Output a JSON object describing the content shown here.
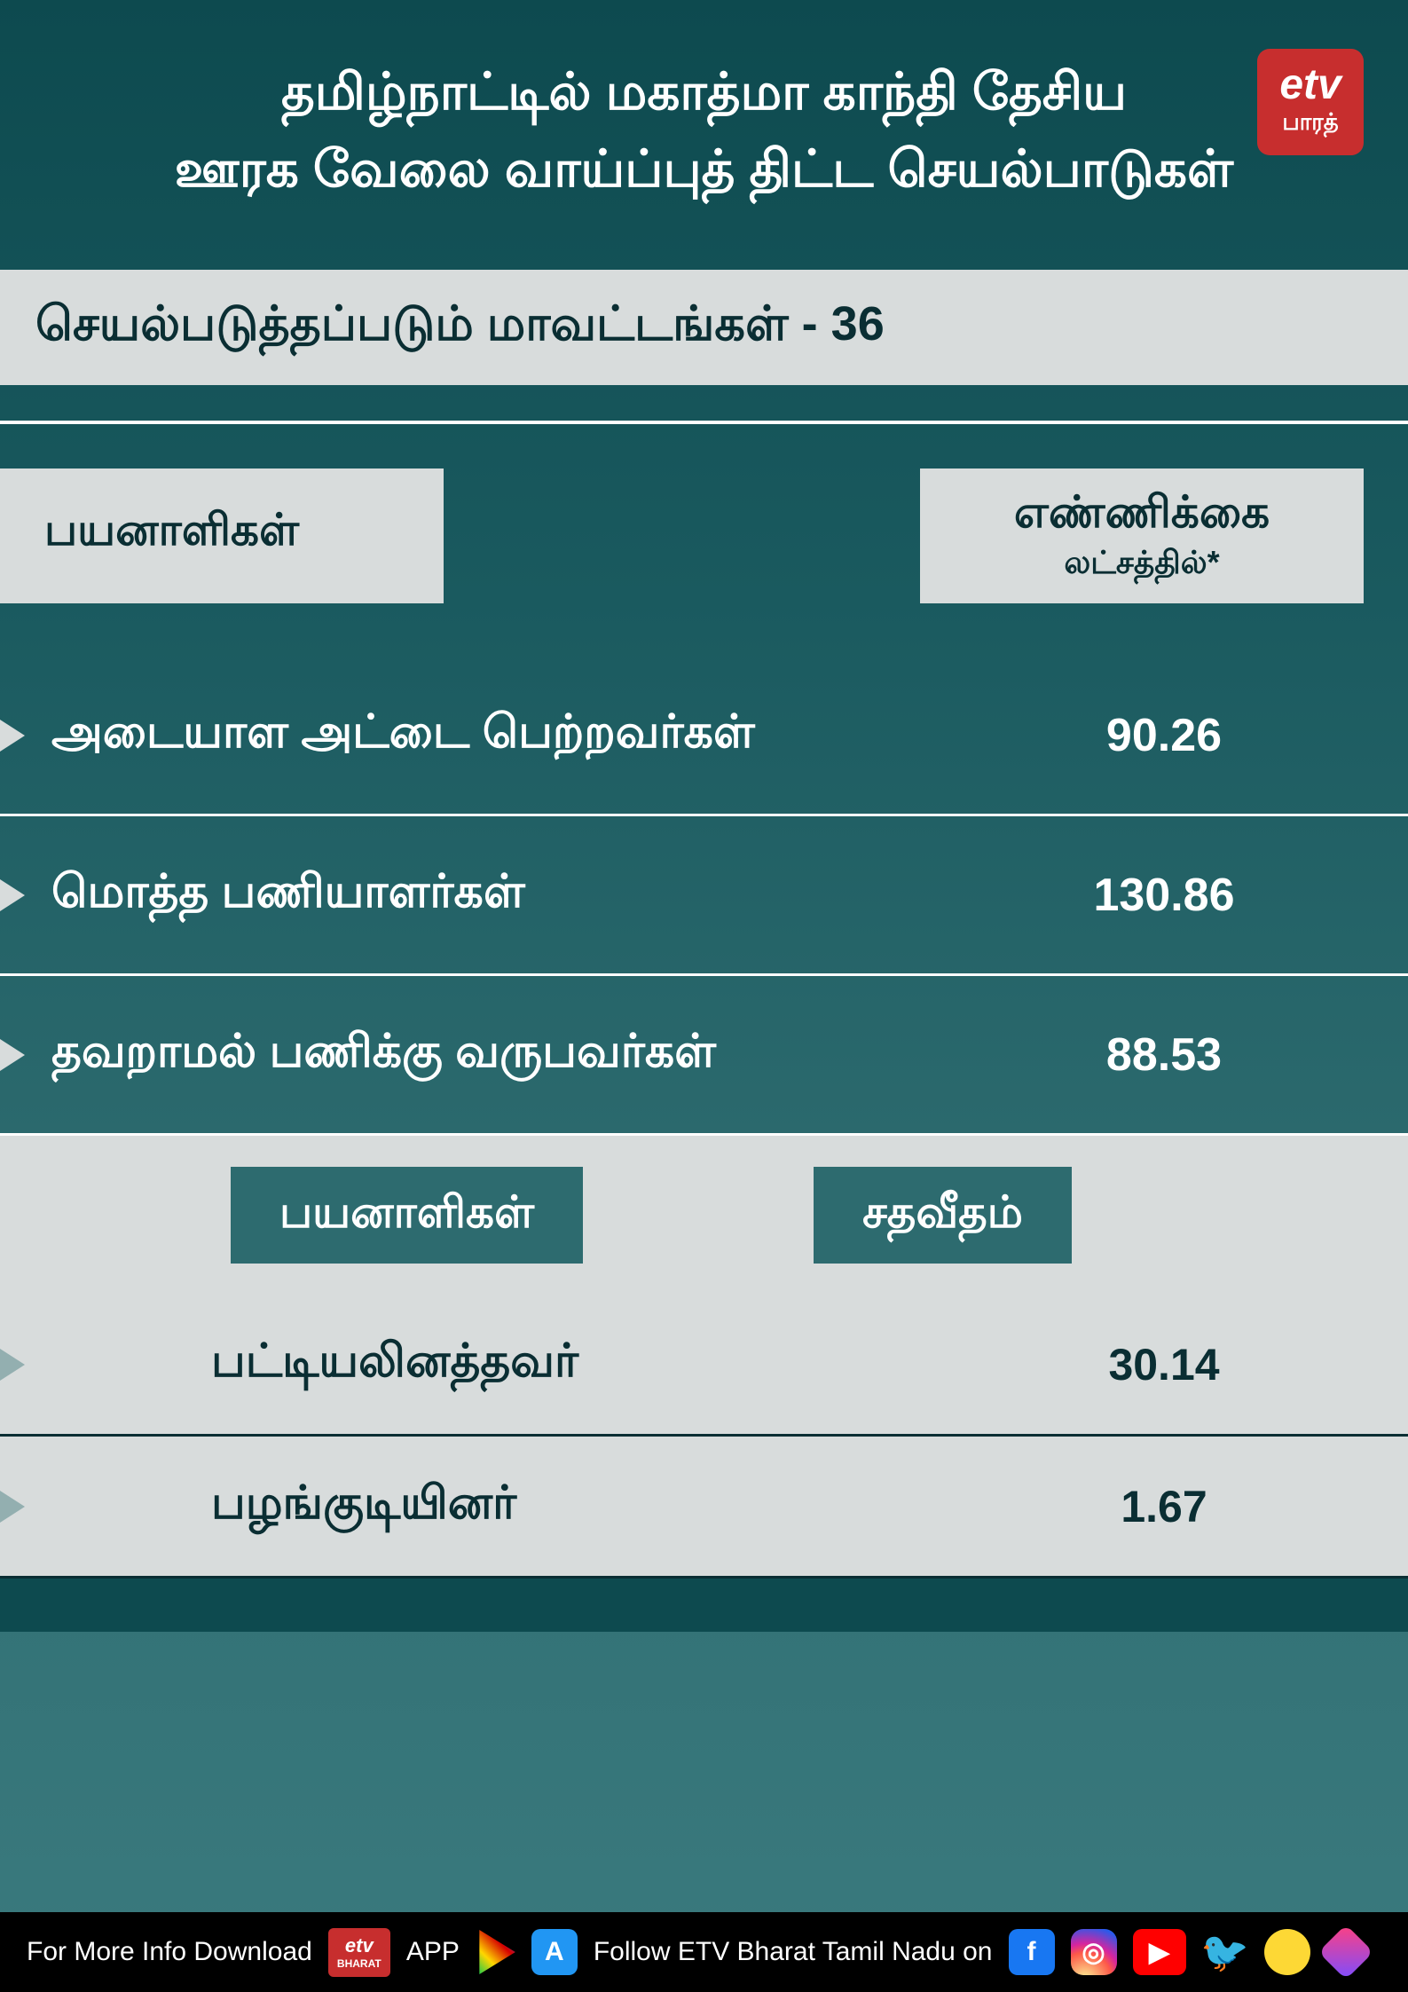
{
  "header": {
    "title_line1": "தமிழ்நாட்டில் மகாத்மா காந்தி தேசிய",
    "title_line2": "ஊரக வேலை வாய்ப்புத் திட்ட செயல்பாடுகள்",
    "logo_top": "etv",
    "logo_bottom": "பாரத்"
  },
  "subtitle": "செயல்படுத்தப்படும் மாவட்டங்கள் - 36",
  "table1": {
    "col1_header": "பயனாளிகள்",
    "col2_header_big": "எண்ணிக்கை",
    "col2_header_small": "லட்சத்தில்*",
    "rows": [
      {
        "label": "அடையாள அட்டை பெற்றவர்கள்",
        "value": "90.26"
      },
      {
        "label": "மொத்த பணியாளர்கள்",
        "value": "130.86"
      },
      {
        "label": "தவறாமல் பணிக்கு வருபவர்கள்",
        "value": "88.53"
      }
    ]
  },
  "table2": {
    "col1_header": "பயனாளிகள்",
    "col2_header": "சதவீதம்",
    "rows": [
      {
        "label": "பட்டியலினத்தவர்",
        "value": "30.14"
      },
      {
        "label": "பழங்குடியினர்",
        "value": "1.67"
      }
    ]
  },
  "footer": {
    "text_left": "For More Info Download",
    "app_label": "APP",
    "text_right": "Follow ETV Bharat Tamil Nadu on",
    "logo_top": "etv",
    "logo_bottom": "BHARAT"
  },
  "colors": {
    "bg_top": "#0d4a4f",
    "bg_bottom": "#3a7a7e",
    "light_gray": "#d8dcdc",
    "dark_text": "#0a2e33",
    "white": "#ffffff",
    "teal_pill": "#2d6b6f",
    "logo_red": "#c72e2e",
    "black": "#000000"
  }
}
